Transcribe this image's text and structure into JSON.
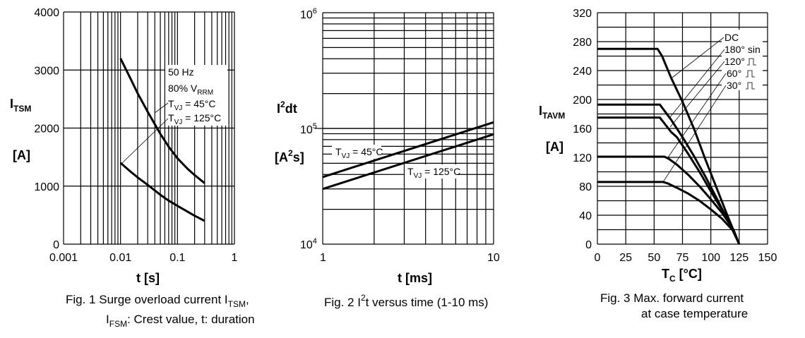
{
  "chart_data": [
    {
      "id": "fig1",
      "type": "line",
      "title": "Fig. 1  Surge overload current I_TSM, I_FSM: Crest value, t: duration",
      "caption_line1": "Fig. 1  Surge overload current I",
      "caption_line1_sub": "TSM",
      "caption_line1_end": ",",
      "caption_line2_pre": "I",
      "caption_line2_sub": "FSM",
      "caption_line2": ": Crest value, t: duration",
      "xlabel": "t  [s]",
      "ylabel": "I_TSM",
      "ylabel_main": "I",
      "ylabel_sub": "TSM",
      "yunit": "[A]",
      "xscale": "log",
      "xlim": [
        0.001,
        1
      ],
      "ylim": [
        0,
        4000
      ],
      "xticks": [
        0.001,
        0.01,
        0.1,
        1
      ],
      "xtick_labels": [
        "0.001",
        "0.01",
        "0.1",
        "1"
      ],
      "yticks": [
        0,
        1000,
        2000,
        3000,
        4000
      ],
      "ytick_labels": [
        "0",
        "1000",
        "2000",
        "3000",
        "4000"
      ],
      "grid": true,
      "annotations": [
        "50 Hz",
        "80% V_RRM",
        "T_VJ =   45°C",
        "T_VJ = 125°C"
      ],
      "series": [
        {
          "name": "T_VJ = 45°C",
          "x": [
            0.01,
            0.015,
            0.02,
            0.03,
            0.05,
            0.07,
            0.1,
            0.15,
            0.2,
            0.3
          ],
          "y": [
            3200,
            2850,
            2600,
            2280,
            1900,
            1680,
            1480,
            1300,
            1190,
            1050
          ]
        },
        {
          "name": "T_VJ = 125°C",
          "x": [
            0.01,
            0.015,
            0.02,
            0.03,
            0.05,
            0.07,
            0.1,
            0.15,
            0.2,
            0.3
          ],
          "y": [
            1400,
            1250,
            1150,
            1020,
            850,
            750,
            660,
            560,
            490,
            400
          ]
        }
      ]
    },
    {
      "id": "fig2",
      "type": "line",
      "title": "Fig. 2  I²t versus time (1-10 ms)",
      "caption_pre": "Fig. 2  I",
      "caption_sup": "2",
      "caption_post": "t versus time (1-10 ms)",
      "xlabel": "t  [ms]",
      "ylabel": "I²dt",
      "ylabel_main": "I",
      "ylabel_sup": "2",
      "ylabel_post": "dt",
      "yunit": "[A²s]",
      "xscale": "log",
      "yscale": "log",
      "xlim": [
        1,
        10
      ],
      "ylim": [
        10000,
        1000000
      ],
      "xtick_labels": [
        "1",
        "10"
      ],
      "ytick_labels": [
        "10^4",
        "10^5",
        "10^6"
      ],
      "grid": true,
      "series": [
        {
          "name": "T_VJ = 45°C",
          "x": [
            1,
            10
          ],
          "y": [
            38000,
            113000
          ]
        },
        {
          "name": "T_VJ = 125°C",
          "x": [
            1,
            10
          ],
          "y": [
            30000,
            89000
          ]
        }
      ]
    },
    {
      "id": "fig3",
      "type": "line",
      "title": "Fig. 3  Max. forward current at case temperature",
      "caption_line1": "Fig. 3  Max. forward current",
      "caption_line2": "at case temperature",
      "xlabel": "T_C  [°C]",
      "xlabel_main": "T",
      "xlabel_sub": "C",
      "xlabel_unit": "[°C]",
      "ylabel": "I_TAVM",
      "ylabel_main": "I",
      "ylabel_sub": "TAVM",
      "yunit": "[A]",
      "xlim": [
        0,
        150
      ],
      "ylim": [
        0,
        320
      ],
      "xticks": [
        0,
        25,
        50,
        75,
        100,
        125,
        150
      ],
      "xtick_labels": [
        "0",
        "25",
        "50",
        "75",
        "100",
        "125",
        "150"
      ],
      "yticks": [
        0,
        40,
        80,
        120,
        160,
        200,
        240,
        280,
        320
      ],
      "ytick_labels": [
        "0",
        "40",
        "80",
        "120",
        "160",
        "200",
        "240",
        "280",
        "320"
      ],
      "grid": true,
      "legend": [
        "DC",
        "180° sin",
        "120° ⎍",
        "60° ⎍",
        "30° ⎍"
      ],
      "series": [
        {
          "name": "DC",
          "x": [
            0,
            53,
            57,
            65,
            75,
            85,
            95,
            105,
            115,
            125
          ],
          "y": [
            270,
            270,
            260,
            230,
            197,
            160,
            118,
            78,
            38,
            0
          ]
        },
        {
          "name": "180° sin",
          "x": [
            0,
            55,
            65,
            75,
            85,
            95,
            105,
            115,
            125
          ],
          "y": [
            193,
            193,
            172,
            148,
            122,
            94,
            64,
            33,
            0
          ]
        },
        {
          "name": "120° rect",
          "x": [
            0,
            55,
            65,
            70,
            80,
            90,
            100,
            110,
            120,
            125
          ],
          "y": [
            175,
            175,
            155,
            148,
            125,
            100,
            73,
            47,
            18,
            0
          ]
        },
        {
          "name": "60° rect",
          "x": [
            0,
            59,
            63,
            70,
            80,
            90,
            100,
            110,
            120,
            125
          ],
          "y": [
            121,
            121,
            118,
            110,
            96,
            80,
            62,
            43,
            20,
            0
          ]
        },
        {
          "name": "30° rect",
          "x": [
            0,
            58,
            62,
            70,
            80,
            90,
            100,
            110,
            120,
            125
          ],
          "y": [
            86,
            86,
            84,
            78,
            70,
            60,
            48,
            35,
            18,
            0
          ]
        }
      ]
    }
  ]
}
